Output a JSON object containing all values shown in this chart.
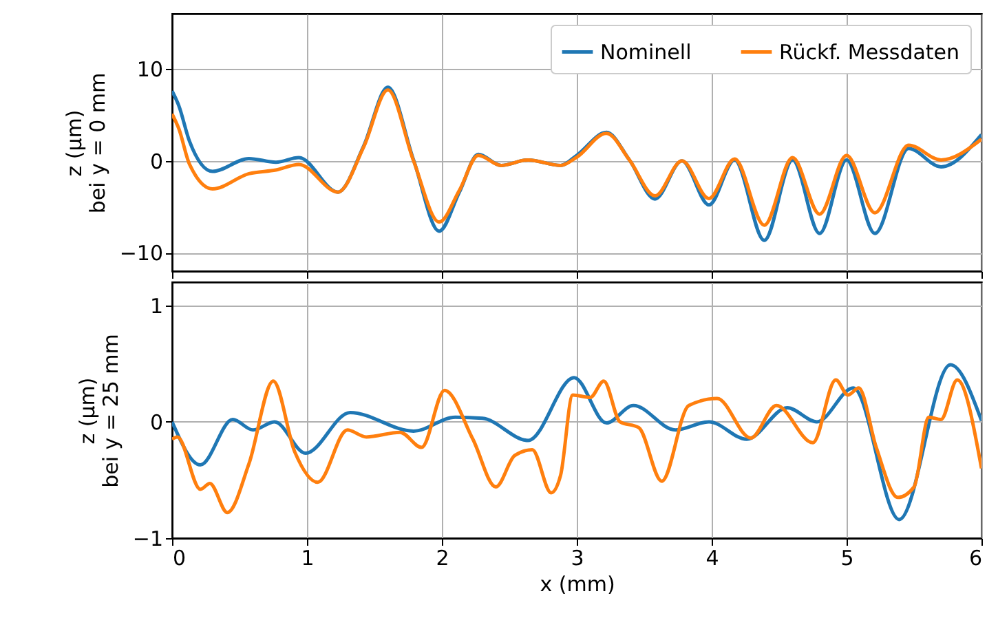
{
  "chart_data": [
    {
      "type": "line",
      "ylabel": "z (µm)\nbei y = 0 mm",
      "xlim": [
        0,
        6
      ],
      "xticks": [
        0,
        1,
        2,
        3,
        4,
        5,
        6
      ],
      "ylim": [
        -12,
        16
      ],
      "yticks": [
        -10,
        0,
        10
      ],
      "grid": true,
      "legend": "top right",
      "tick_labels": "y",
      "series": [
        {
          "name": "Nominell",
          "color": "#1f77b4",
          "x": [
            0,
            0.05,
            0.13,
            0.3,
            0.57,
            0.77,
            0.94,
            1.23,
            1.42,
            1.6,
            1.79,
            1.98,
            2.13,
            2.27,
            2.44,
            2.64,
            2.88,
            3.0,
            3.22,
            3.39,
            3.58,
            3.78,
            3.98,
            4.17,
            4.39,
            4.6,
            4.8,
            5.0,
            5.21,
            5.46,
            5.7,
            6.0
          ],
          "values": [
            7.6,
            6.0,
            2.1,
            -1.15,
            0.25,
            -0.15,
            0.35,
            -3.4,
            1.6,
            8.0,
            0.1,
            -7.65,
            -3.4,
            0.7,
            -0.5,
            0.1,
            -0.5,
            0.6,
            3.1,
            0.1,
            -4.15,
            0,
            -4.8,
            0.1,
            -8.65,
            0.1,
            -7.9,
            0.1,
            -7.9,
            1.35,
            -0.65,
            2.85
          ]
        },
        {
          "name": "Rückf. Messdaten",
          "color": "#ff7f0e",
          "x": [
            0,
            0.05,
            0.13,
            0.3,
            0.57,
            0.77,
            0.94,
            1.23,
            1.42,
            1.6,
            1.79,
            1.98,
            2.13,
            2.27,
            2.44,
            2.64,
            2.88,
            3.0,
            3.22,
            3.39,
            3.58,
            3.78,
            3.98,
            4.17,
            4.39,
            4.6,
            4.8,
            5.0,
            5.21,
            5.46,
            5.7,
            6.0
          ],
          "values": [
            5.1,
            3.5,
            -0.4,
            -3.05,
            -1.4,
            -1.0,
            -0.4,
            -3.4,
            1.5,
            7.7,
            0,
            -6.65,
            -3.2,
            0.6,
            -0.5,
            0.1,
            -0.5,
            0.4,
            3.0,
            0.1,
            -3.8,
            0,
            -4.1,
            0.2,
            -7.0,
            0.35,
            -5.8,
            0.6,
            -5.65,
            1.7,
            0.1,
            2.35
          ]
        }
      ]
    },
    {
      "type": "line",
      "xlabel": "x (mm)",
      "ylabel": "z (µm)\nbei y = 25 mm",
      "xlim": [
        0,
        6
      ],
      "xticks": [
        0,
        1,
        2,
        3,
        4,
        5,
        6
      ],
      "ylim": [
        -1,
        1.2
      ],
      "yticks": [
        -1,
        0,
        1
      ],
      "grid": true,
      "series": [
        {
          "color": "#1f77b4",
          "x": [
            0,
            0.21,
            0.45,
            0.6,
            0.76,
            0.99,
            1.32,
            1.79,
            2.1,
            2.3,
            2.64,
            2.98,
            3.22,
            3.42,
            3.73,
            3.98,
            4.26,
            4.56,
            4.78,
            5.05,
            5.39,
            5.77,
            6.0
          ],
          "values": [
            0,
            -0.37,
            0.02,
            -0.07,
            0,
            -0.27,
            0.08,
            -0.08,
            0.04,
            0.03,
            -0.16,
            0.38,
            -0.01,
            0.14,
            -0.07,
            0,
            -0.15,
            0.12,
            0,
            0.29,
            -0.84,
            0.49,
            0.01
          ]
        },
        {
          "color": "#ff7f0e",
          "x": [
            0,
            0.04,
            0.21,
            0.28,
            0.41,
            0.57,
            0.75,
            0.91,
            1.08,
            1.3,
            1.44,
            1.69,
            1.85,
            2.02,
            2.23,
            2.4,
            2.54,
            2.67,
            2.81,
            2.88,
            2.97,
            3.1,
            3.2,
            3.32,
            3.46,
            3.63,
            3.83,
            4.04,
            4.29,
            4.48,
            4.75,
            4.92,
            5.01,
            5.09,
            5.22,
            5.38,
            5.5,
            5.61,
            5.7,
            5.82,
            6.0
          ],
          "values": [
            -0.15,
            -0.13,
            -0.58,
            -0.53,
            -0.78,
            -0.36,
            0.35,
            -0.26,
            -0.52,
            -0.07,
            -0.13,
            -0.09,
            -0.22,
            0.27,
            -0.15,
            -0.56,
            -0.29,
            -0.24,
            -0.61,
            -0.46,
            0.23,
            0.21,
            0.35,
            0,
            -0.05,
            -0.51,
            0.14,
            0.2,
            -0.14,
            0.14,
            -0.18,
            0.36,
            0.23,
            0.29,
            -0.22,
            -0.65,
            -0.56,
            0.04,
            0.02,
            0.36,
            -0.4
          ]
        }
      ]
    }
  ]
}
